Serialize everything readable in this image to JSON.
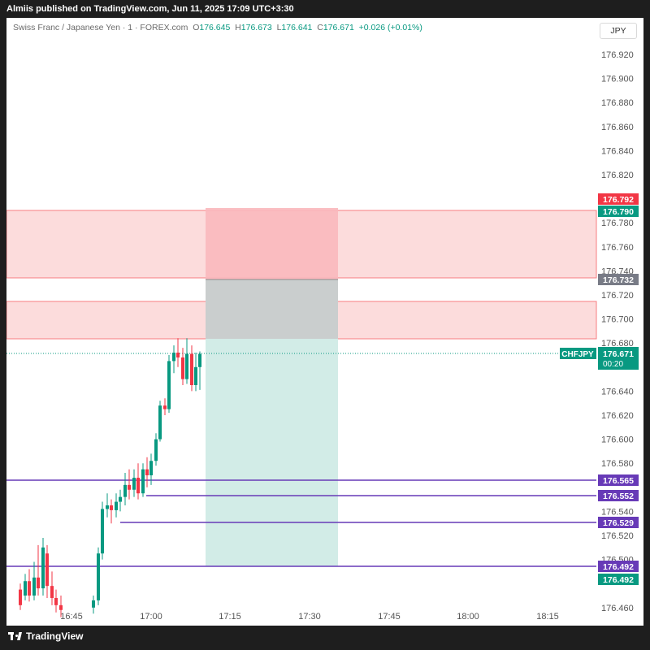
{
  "header": {
    "published_text": "Almiis published on TradingView.com, Jun 11, 2025 17:09 UTC+3:30"
  },
  "legend": {
    "symbol": "Swiss Franc / Japanese Yen · 1 · FOREX.com",
    "o_label": "O",
    "o": "176.645",
    "h_label": "H",
    "h": "176.673",
    "l_label": "L",
    "l": "176.641",
    "c_label": "C",
    "c": "176.671",
    "change": "+0.026 (+0.01%)"
  },
  "currency_button": "JPY",
  "price_axis": [
    "176.920",
    "176.900",
    "176.880",
    "176.860",
    "176.840",
    "176.820",
    "176.780",
    "176.760",
    "176.740",
    "176.720",
    "176.700",
    "176.680",
    "176.640",
    "176.620",
    "176.600",
    "176.580",
    "176.540",
    "176.520",
    "176.500",
    "176.460"
  ],
  "time_axis": [
    "16:45",
    "17:00",
    "17:15",
    "17:30",
    "17:45",
    "18:00",
    "18:15"
  ],
  "price_tags": {
    "sl": "176.792",
    "zone_top": "176.790",
    "entry": "176.732",
    "symbol_tag": "CHFJPY",
    "last_price": "176.671",
    "countdown": "00:20",
    "line1": "176.565",
    "line2": "176.552",
    "line3": "176.529",
    "line4": "176.492",
    "tp": "176.492"
  },
  "colors": {
    "up": "#089981",
    "down": "#f23645",
    "zone_fill": "#fcdcdc",
    "zone_stroke": "#f77c80",
    "stop_fill": "#f9b8bd",
    "target_fill": "#d2ece7",
    "line": "#673ab7",
    "axis_text": "#555555"
  },
  "footer": {
    "brand": "TradingView"
  }
}
